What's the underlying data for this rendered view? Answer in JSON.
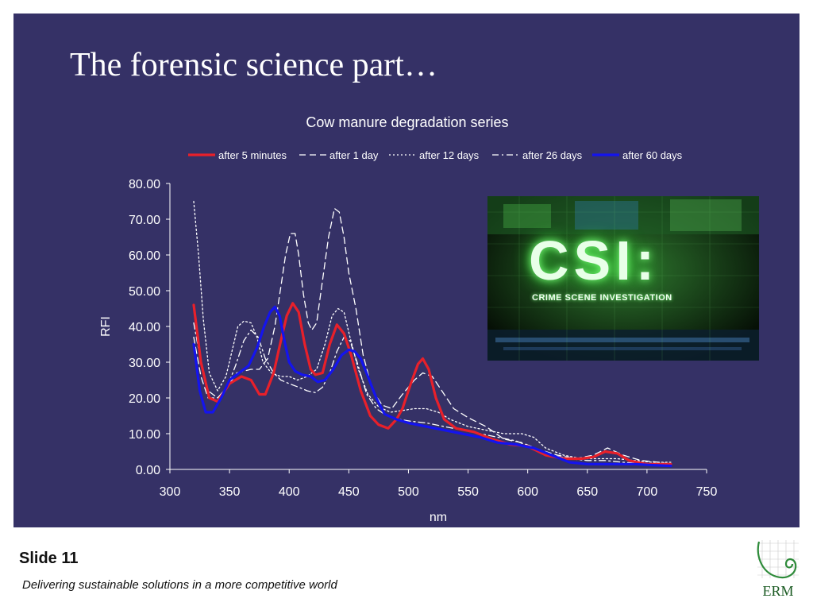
{
  "slide": {
    "title": "The forensic science part…",
    "slide_number": "Slide 11",
    "tagline": "Delivering sustainable solutions in a more competitive world",
    "logo_text": "ERM"
  },
  "csi_image": {
    "headline": "CSI:",
    "subtitle": "CRIME SCENE INVESTIGATION"
  },
  "colors": {
    "panel_background": "#353166",
    "after_5_minutes": "#e8202a",
    "after_60_days": "#1414ee",
    "white_series": "#ffffff"
  },
  "chart_data": {
    "type": "line",
    "title": "Cow manure degradation series",
    "xlabel": "nm",
    "ylabel": "RFI",
    "xlim": [
      300,
      750
    ],
    "ylim": [
      0,
      80
    ],
    "xticks": [
      "300",
      "350",
      "400",
      "450",
      "500",
      "550",
      "600",
      "650",
      "700",
      "750"
    ],
    "yticks": [
      "0.00",
      "10.00",
      "20.00",
      "30.00",
      "40.00",
      "50.00",
      "60.00",
      "70.00",
      "80.00"
    ],
    "grid": false,
    "legend_position": "top",
    "series": [
      {
        "name": "after 5 minutes",
        "style": "solid-thick",
        "color": "#e8202a",
        "points": [
          [
            320,
            46
          ],
          [
            326,
            30
          ],
          [
            333,
            20
          ],
          [
            340,
            19
          ],
          [
            350,
            24
          ],
          [
            360,
            26
          ],
          [
            368,
            25
          ],
          [
            375,
            21
          ],
          [
            380,
            21
          ],
          [
            387,
            27
          ],
          [
            393,
            36
          ],
          [
            398,
            43
          ],
          [
            403,
            46.5
          ],
          [
            408,
            44
          ],
          [
            413,
            35
          ],
          [
            418,
            28
          ],
          [
            422,
            26.5
          ],
          [
            428,
            27
          ],
          [
            434,
            35
          ],
          [
            440,
            40.5
          ],
          [
            446,
            38
          ],
          [
            452,
            32
          ],
          [
            460,
            22
          ],
          [
            468,
            15
          ],
          [
            475,
            12.5
          ],
          [
            483,
            11.5
          ],
          [
            490,
            14
          ],
          [
            495,
            17
          ],
          [
            502,
            24
          ],
          [
            508,
            29.5
          ],
          [
            512,
            31
          ],
          [
            517,
            28
          ],
          [
            523,
            20
          ],
          [
            530,
            14
          ],
          [
            540,
            11.5
          ],
          [
            555,
            10.5
          ],
          [
            570,
            8.5
          ],
          [
            585,
            7
          ],
          [
            600,
            6.5
          ],
          [
            615,
            4
          ],
          [
            630,
            3
          ],
          [
            645,
            3
          ],
          [
            655,
            3.5
          ],
          [
            665,
            5
          ],
          [
            675,
            4.5
          ],
          [
            685,
            2.5
          ],
          [
            700,
            1.5
          ],
          [
            720,
            1.5
          ]
        ]
      },
      {
        "name": "after 1 day",
        "style": "dashed",
        "color": "#ffffff",
        "points": [
          [
            320,
            37
          ],
          [
            326,
            26
          ],
          [
            332,
            20
          ],
          [
            340,
            20
          ],
          [
            348,
            23
          ],
          [
            356,
            27
          ],
          [
            362,
            27.5
          ],
          [
            368,
            28
          ],
          [
            375,
            28
          ],
          [
            382,
            31
          ],
          [
            388,
            40
          ],
          [
            393,
            51
          ],
          [
            397,
            60
          ],
          [
            401,
            66
          ],
          [
            405,
            66
          ],
          [
            408,
            60
          ],
          [
            412,
            49
          ],
          [
            416,
            41
          ],
          [
            419,
            39
          ],
          [
            423,
            41
          ],
          [
            428,
            53
          ],
          [
            433,
            65
          ],
          [
            438,
            73
          ],
          [
            442,
            72
          ],
          [
            446,
            65
          ],
          [
            450,
            55
          ],
          [
            456,
            45
          ],
          [
            462,
            32
          ],
          [
            470,
            22
          ],
          [
            478,
            18
          ],
          [
            486,
            17
          ],
          [
            495,
            21
          ],
          [
            505,
            25
          ],
          [
            512,
            27
          ],
          [
            520,
            26
          ],
          [
            528,
            22
          ],
          [
            538,
            17
          ],
          [
            550,
            14.5
          ],
          [
            565,
            12
          ],
          [
            580,
            8.5
          ],
          [
            595,
            7.5
          ],
          [
            610,
            5.5
          ],
          [
            625,
            4
          ],
          [
            640,
            3
          ],
          [
            655,
            4
          ],
          [
            667,
            6
          ],
          [
            680,
            4
          ],
          [
            695,
            2.5
          ],
          [
            710,
            2
          ],
          [
            720,
            1.5
          ]
        ]
      },
      {
        "name": "after 12 days",
        "style": "dotted",
        "color": "#ffffff",
        "points": [
          [
            320,
            75
          ],
          [
            324,
            60
          ],
          [
            328,
            42
          ],
          [
            333,
            27
          ],
          [
            340,
            22
          ],
          [
            347,
            26
          ],
          [
            352,
            33
          ],
          [
            357,
            40
          ],
          [
            362,
            41.5
          ],
          [
            368,
            41
          ],
          [
            373,
            37
          ],
          [
            378,
            30
          ],
          [
            385,
            27
          ],
          [
            393,
            26
          ],
          [
            400,
            26
          ],
          [
            407,
            25
          ],
          [
            415,
            26
          ],
          [
            423,
            28
          ],
          [
            430,
            35
          ],
          [
            436,
            43
          ],
          [
            441,
            45
          ],
          [
            446,
            44
          ],
          [
            451,
            37
          ],
          [
            458,
            28
          ],
          [
            466,
            21
          ],
          [
            475,
            17.5
          ],
          [
            485,
            16
          ],
          [
            495,
            16.5
          ],
          [
            505,
            17
          ],
          [
            515,
            17
          ],
          [
            525,
            16
          ],
          [
            535,
            14
          ],
          [
            550,
            12
          ],
          [
            565,
            11
          ],
          [
            580,
            10
          ],
          [
            595,
            10
          ],
          [
            605,
            9
          ],
          [
            615,
            6
          ],
          [
            630,
            4
          ],
          [
            645,
            3
          ],
          [
            660,
            3
          ],
          [
            675,
            3
          ],
          [
            690,
            2.5
          ],
          [
            705,
            2
          ],
          [
            720,
            2
          ]
        ]
      },
      {
        "name": "after 26 days",
        "style": "dash-dot",
        "color": "#ffffff",
        "points": [
          [
            320,
            41
          ],
          [
            326,
            30
          ],
          [
            332,
            22
          ],
          [
            340,
            20
          ],
          [
            348,
            23
          ],
          [
            355,
            29
          ],
          [
            362,
            36
          ],
          [
            368,
            39
          ],
          [
            374,
            37
          ],
          [
            380,
            31
          ],
          [
            387,
            27
          ],
          [
            393,
            25
          ],
          [
            400,
            24
          ],
          [
            408,
            23
          ],
          [
            415,
            22
          ],
          [
            422,
            21.5
          ],
          [
            428,
            23
          ],
          [
            434,
            27
          ],
          [
            440,
            33
          ],
          [
            446,
            37
          ],
          [
            451,
            36
          ],
          [
            457,
            30
          ],
          [
            465,
            21
          ],
          [
            473,
            17
          ],
          [
            482,
            15
          ],
          [
            492,
            14
          ],
          [
            502,
            13.5
          ],
          [
            515,
            13
          ],
          [
            530,
            12
          ],
          [
            545,
            11
          ],
          [
            560,
            10
          ],
          [
            575,
            9
          ],
          [
            590,
            8
          ],
          [
            605,
            6
          ],
          [
            620,
            4
          ],
          [
            635,
            3
          ],
          [
            650,
            2.5
          ],
          [
            665,
            2.5
          ],
          [
            680,
            2
          ],
          [
            700,
            1.5
          ],
          [
            720,
            1.5
          ]
        ]
      },
      {
        "name": "after 60 days",
        "style": "solid-thick",
        "color": "#1414ee",
        "points": [
          [
            320,
            35
          ],
          [
            325,
            22
          ],
          [
            330,
            16
          ],
          [
            336,
            16
          ],
          [
            343,
            20
          ],
          [
            350,
            25
          ],
          [
            358,
            27
          ],
          [
            366,
            29
          ],
          [
            373,
            34
          ],
          [
            379,
            40
          ],
          [
            384,
            44
          ],
          [
            388,
            45.5
          ],
          [
            392,
            43
          ],
          [
            396,
            36
          ],
          [
            400,
            30
          ],
          [
            405,
            27.5
          ],
          [
            411,
            26.5
          ],
          [
            418,
            26
          ],
          [
            424,
            24.5
          ],
          [
            430,
            25
          ],
          [
            437,
            28
          ],
          [
            444,
            32
          ],
          [
            450,
            33.5
          ],
          [
            455,
            33
          ],
          [
            460,
            31
          ],
          [
            466,
            26
          ],
          [
            473,
            20
          ],
          [
            480,
            15.5
          ],
          [
            490,
            14
          ],
          [
            500,
            13
          ],
          [
            515,
            12
          ],
          [
            530,
            11
          ],
          [
            545,
            10
          ],
          [
            560,
            9
          ],
          [
            575,
            7.5
          ],
          [
            590,
            7
          ],
          [
            605,
            6
          ],
          [
            620,
            4
          ],
          [
            635,
            2
          ],
          [
            650,
            1.5
          ],
          [
            670,
            1.5
          ],
          [
            690,
            1.5
          ],
          [
            705,
            1.2
          ],
          [
            720,
            1
          ]
        ]
      }
    ]
  }
}
